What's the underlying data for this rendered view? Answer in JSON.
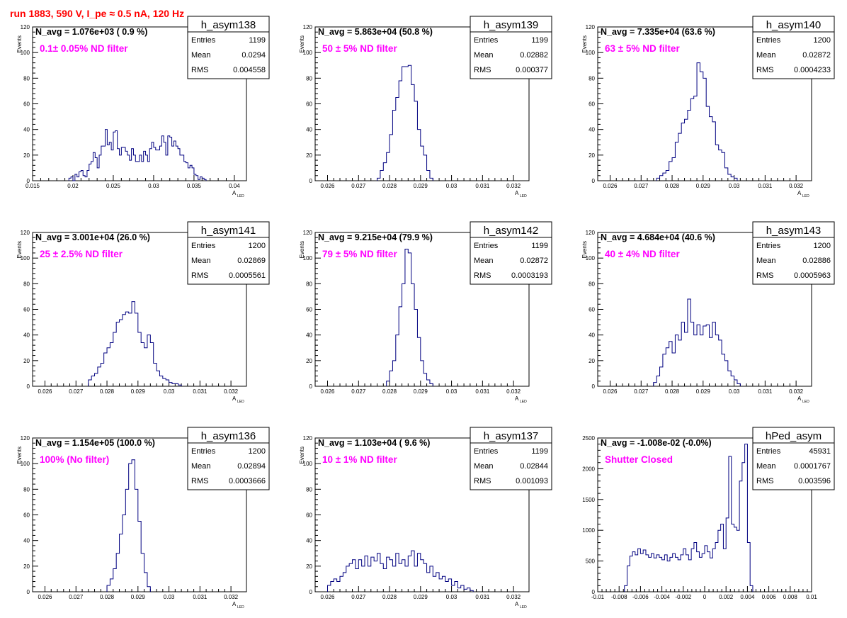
{
  "run_title": "run 1883,   590 V, I_pe ≈ 0.5 nA, 120 Hz",
  "colors": {
    "title": "#ff0000",
    "annotation": "#ff00ff",
    "hist": "#000080",
    "axis": "#000000"
  },
  "stat_labels": {
    "entries": "Entries",
    "mean": "Mean",
    "rms": "RMS"
  },
  "chart_data": [
    {
      "type": "histogram",
      "name": "h_asym138",
      "nav": "N_avg = 1.076e+03 ( 0.9 %)",
      "annotation": "0.1± 0.05% ND filter",
      "entries": "1199",
      "mean": "0.0294",
      "rms": "0.004558",
      "xlabel": "A",
      "xlabel_sub": "LED",
      "ylabel": "Events",
      "xlim": [
        0.015,
        0.0415
      ],
      "ylim": [
        0,
        120
      ],
      "xticks": [
        0.015,
        0.02,
        0.025,
        0.03,
        0.035,
        0.04
      ],
      "xtick_labels": [
        "0.015",
        "0.02",
        "0.025",
        "0.03",
        "0.035",
        "0.04"
      ],
      "yticks": [
        0,
        20,
        40,
        60,
        80,
        100,
        120
      ],
      "ytick_labels": [
        "0",
        "20",
        "40",
        "60",
        "80",
        "100",
        "120"
      ],
      "bin_start": 0.0195,
      "bin_width": 0.00025,
      "values": [
        2,
        3,
        0,
        5,
        3,
        7,
        8,
        4,
        3,
        8,
        13,
        15,
        22,
        18,
        10,
        20,
        27,
        27,
        40,
        28,
        30,
        24,
        38,
        39,
        25,
        20,
        26,
        26,
        23,
        20,
        16,
        25,
        20,
        15,
        15,
        20,
        15,
        23,
        20,
        15,
        25,
        30,
        26,
        24,
        24,
        27,
        35,
        30,
        20,
        35,
        34,
        27,
        31,
        27,
        25,
        20,
        20,
        15,
        14,
        10,
        12,
        10,
        5,
        4,
        1,
        3,
        2,
        1
      ]
    },
    {
      "type": "histogram",
      "name": "h_asym139",
      "nav": "N_avg = 5.863e+04 (50.8 %)",
      "annotation": "50 ± 5% ND filter",
      "entries": "1199",
      "mean": "0.02882",
      "rms": "0.000377",
      "xlabel": "A",
      "xlabel_sub": "LED",
      "ylabel": "Events",
      "xlim": [
        0.0256,
        0.0325
      ],
      "ylim": [
        0,
        120
      ],
      "xticks": [
        0.026,
        0.027,
        0.028,
        0.029,
        0.03,
        0.031,
        0.032
      ],
      "xtick_labels": [
        "0.026",
        "0.027",
        "0.028",
        "0.029",
        "0.03",
        "0.031",
        "0.032"
      ],
      "yticks": [
        0,
        20,
        40,
        60,
        80,
        100,
        120
      ],
      "ytick_labels": [
        "0",
        "20",
        "40",
        "60",
        "80",
        "100",
        "120"
      ],
      "bin_start": 0.0276,
      "bin_width": 0.0001,
      "values": [
        2,
        8,
        14,
        22,
        36,
        55,
        65,
        78,
        89,
        89,
        90,
        75,
        62,
        40,
        27,
        20,
        8,
        2
      ]
    },
    {
      "type": "histogram",
      "name": "h_asym140",
      "nav": "N_avg = 7.335e+04 (63.6 %)",
      "annotation": "63 ± 5% ND filter",
      "entries": "1200",
      "mean": "0.02872",
      "rms": "0.0004233",
      "xlabel": "A",
      "xlabel_sub": "LED",
      "ylabel": "Events",
      "xlim": [
        0.0256,
        0.0325
      ],
      "ylim": [
        0,
        120
      ],
      "xticks": [
        0.026,
        0.027,
        0.028,
        0.029,
        0.03,
        0.031,
        0.032
      ],
      "xtick_labels": [
        "0.026",
        "0.027",
        "0.028",
        "0.029",
        "0.03",
        "0.031",
        "0.032"
      ],
      "yticks": [
        0,
        20,
        40,
        60,
        80,
        100,
        120
      ],
      "ytick_labels": [
        "0",
        "20",
        "40",
        "60",
        "80",
        "100",
        "120"
      ],
      "bin_start": 0.0275,
      "bin_width": 0.0001,
      "values": [
        2,
        4,
        6,
        8,
        15,
        18,
        30,
        37,
        45,
        48,
        55,
        64,
        66,
        92,
        85,
        80,
        58,
        50,
        46,
        28,
        24,
        22,
        10,
        5,
        3,
        2
      ]
    },
    {
      "type": "histogram",
      "name": "h_asym141",
      "nav": "N_avg = 3.001e+04 (26.0 %)",
      "annotation": "25 ± 2.5% ND filter",
      "entries": "1200",
      "mean": "0.02869",
      "rms": "0.0005561",
      "xlabel": "A",
      "xlabel_sub": "LED",
      "ylabel": "Events",
      "xlim": [
        0.0256,
        0.0325
      ],
      "ylim": [
        0,
        120
      ],
      "xticks": [
        0.026,
        0.027,
        0.028,
        0.029,
        0.03,
        0.031,
        0.032
      ],
      "xtick_labels": [
        "0.026",
        "0.027",
        "0.028",
        "0.029",
        "0.03",
        "0.031",
        "0.032"
      ],
      "yticks": [
        0,
        20,
        40,
        60,
        80,
        100,
        120
      ],
      "ytick_labels": [
        "0",
        "20",
        "40",
        "60",
        "80",
        "100",
        "120"
      ],
      "bin_start": 0.0274,
      "bin_width": 0.0001,
      "values": [
        5,
        8,
        10,
        15,
        18,
        26,
        30,
        34,
        42,
        50,
        52,
        56,
        58,
        57,
        66,
        57,
        42,
        34,
        30,
        40,
        34,
        18,
        12,
        8,
        6,
        5,
        3,
        2,
        2,
        1
      ]
    },
    {
      "type": "histogram",
      "name": "h_asym142",
      "nav": "N_avg = 9.215e+04 (79.9 %)",
      "annotation": "79 ± 5% ND filter",
      "entries": "1199",
      "mean": "0.02872",
      "rms": "0.0003193",
      "xlabel": "A",
      "xlabel_sub": "LED",
      "ylabel": "Events",
      "xlim": [
        0.0256,
        0.0325
      ],
      "ylim": [
        0,
        120
      ],
      "xticks": [
        0.026,
        0.027,
        0.028,
        0.029,
        0.03,
        0.031,
        0.032
      ],
      "xtick_labels": [
        "0.026",
        "0.027",
        "0.028",
        "0.029",
        "0.03",
        "0.031",
        "0.032"
      ],
      "yticks": [
        0,
        20,
        40,
        60,
        80,
        100,
        120
      ],
      "ytick_labels": [
        "0",
        "20",
        "40",
        "60",
        "80",
        "100",
        "120"
      ],
      "bin_start": 0.0279,
      "bin_width": 0.0001,
      "values": [
        4,
        12,
        20,
        40,
        62,
        80,
        107,
        104,
        80,
        60,
        38,
        20,
        10,
        5,
        2
      ]
    },
    {
      "type": "histogram",
      "name": "h_asym143",
      "nav": "N_avg = 4.684e+04 (40.6 %)",
      "annotation": "40 ± 4% ND filter",
      "entries": "1200",
      "mean": "0.02886",
      "rms": "0.0005963",
      "xlabel": "A",
      "xlabel_sub": "LED",
      "ylabel": "Events",
      "xlim": [
        0.0256,
        0.0325
      ],
      "ylim": [
        0,
        120
      ],
      "xticks": [
        0.026,
        0.027,
        0.028,
        0.029,
        0.03,
        0.031,
        0.032
      ],
      "xtick_labels": [
        "0.026",
        "0.027",
        "0.028",
        "0.029",
        "0.03",
        "0.031",
        "0.032"
      ],
      "yticks": [
        0,
        20,
        40,
        60,
        80,
        100,
        120
      ],
      "ytick_labels": [
        "0",
        "20",
        "40",
        "60",
        "80",
        "100",
        "120"
      ],
      "bin_start": 0.0274,
      "bin_width": 0.0001,
      "values": [
        3,
        8,
        15,
        25,
        30,
        35,
        26,
        40,
        36,
        50,
        42,
        68,
        50,
        40,
        48,
        40,
        47,
        48,
        38,
        50,
        40,
        36,
        25,
        20,
        12,
        8,
        5,
        2
      ]
    },
    {
      "type": "histogram",
      "name": "h_asym136",
      "nav": "N_avg = 1.154e+05 (100.0 %)",
      "annotation": "100% (No filter)",
      "entries": "1200",
      "mean": "0.02894",
      "rms": "0.0003666",
      "xlabel": "A",
      "xlabel_sub": "LED",
      "ylabel": "Events",
      "xlim": [
        0.0256,
        0.0325
      ],
      "ylim": [
        0,
        120
      ],
      "xticks": [
        0.026,
        0.027,
        0.028,
        0.029,
        0.03,
        0.031,
        0.032
      ],
      "xtick_labels": [
        "0.026",
        "0.027",
        "0.028",
        "0.029",
        "0.03",
        "0.031",
        "0.032"
      ],
      "yticks": [
        0,
        20,
        40,
        60,
        80,
        100,
        120
      ],
      "ytick_labels": [
        "0",
        "20",
        "40",
        "60",
        "80",
        "100",
        "120"
      ],
      "bin_start": 0.028,
      "bin_width": 0.0001,
      "values": [
        5,
        10,
        18,
        30,
        45,
        60,
        80,
        100,
        103,
        80,
        55,
        30,
        15,
        4
      ]
    },
    {
      "type": "histogram",
      "name": "h_asym137",
      "nav": "N_avg = 1.103e+04 ( 9.6 %)",
      "annotation": "10 ± 1% ND filter",
      "entries": "1199",
      "mean": "0.02844",
      "rms": "0.001093",
      "xlabel": "A",
      "xlabel_sub": "LED",
      "ylabel": "Events",
      "xlim": [
        0.0256,
        0.0325
      ],
      "ylim": [
        0,
        120
      ],
      "xticks": [
        0.026,
        0.027,
        0.028,
        0.029,
        0.03,
        0.031,
        0.032
      ],
      "xtick_labels": [
        "0.026",
        "0.027",
        "0.028",
        "0.029",
        "0.03",
        "0.031",
        "0.032"
      ],
      "yticks": [
        0,
        20,
        40,
        60,
        80,
        100,
        120
      ],
      "ytick_labels": [
        "0",
        "20",
        "40",
        "60",
        "80",
        "100",
        "120"
      ],
      "bin_start": 0.026,
      "bin_width": 0.0001,
      "values": [
        5,
        8,
        10,
        8,
        12,
        15,
        20,
        22,
        25,
        18,
        25,
        20,
        28,
        20,
        27,
        24,
        30,
        22,
        18,
        27,
        25,
        20,
        30,
        22,
        25,
        20,
        28,
        32,
        20,
        30,
        25,
        22,
        15,
        20,
        12,
        15,
        10,
        12,
        8,
        10,
        5,
        8,
        3,
        5,
        2,
        3,
        1
      ]
    },
    {
      "type": "histogram",
      "name": "hPed_asym",
      "nav": "N_avg = -1.008e-02 (-0.0%)",
      "annotation": "Shutter Closed",
      "entries": "45931",
      "mean": "0.0001767",
      "rms": "0.003596",
      "xlabel": "",
      "xlabel_sub": "",
      "ylabel": "",
      "xlim": [
        -0.01,
        0.01
      ],
      "ylim": [
        0,
        2500
      ],
      "xticks": [
        -0.01,
        -0.008,
        -0.006,
        -0.004,
        -0.002,
        0,
        0.002,
        0.004,
        0.006,
        0.008,
        0.01
      ],
      "xtick_labels": [
        "-0.01",
        "-0.008",
        "-0.006",
        "-0.004",
        "-0.002",
        "0",
        "0.002",
        "0.004",
        "0.006",
        "0.008",
        "0.01"
      ],
      "yticks": [
        0,
        500,
        1000,
        1500,
        2000,
        2500
      ],
      "ytick_labels": [
        "0",
        "500",
        "1000",
        "1500",
        "2000",
        "2500"
      ],
      "bin_start": -0.0075,
      "bin_width": 0.00025,
      "values": [
        100,
        420,
        580,
        650,
        600,
        700,
        620,
        680,
        600,
        560,
        620,
        550,
        600,
        560,
        520,
        600,
        500,
        560,
        620,
        560,
        520,
        600,
        700,
        600,
        520,
        700,
        800,
        650,
        560,
        620,
        750,
        650,
        550,
        700,
        800,
        1000,
        1100,
        700,
        1200,
        2200,
        1100,
        1050,
        1000,
        1800,
        2100,
        2400,
        800,
        100
      ]
    }
  ]
}
